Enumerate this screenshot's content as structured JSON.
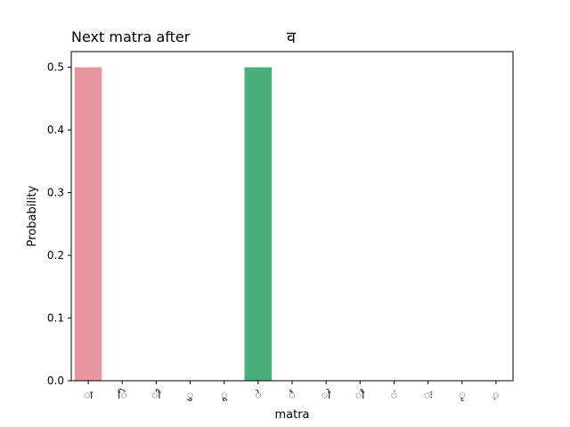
{
  "chart_data": {
    "type": "bar",
    "title": "Next matra after",
    "title_letter": "व",
    "xlabel": "matra",
    "ylabel": "Probability",
    "categories": [
      "ा",
      "ि",
      "ी",
      "ु",
      "ू",
      "े",
      "ै",
      "ो",
      "ौ",
      "ं",
      "ः",
      "ृ",
      "़"
    ],
    "values": [
      0.5,
      0,
      0,
      0,
      0,
      0.5,
      0,
      0,
      0,
      0,
      0,
      0,
      0
    ],
    "colors": [
      "#e8959f",
      "#e59a6b",
      "#c6a44a",
      "#a4ad47",
      "#6fb44a",
      "#49ae79",
      "#4ab09a",
      "#4aa9b0",
      "#4aa2c3",
      "#7e9fe0",
      "#b78fe6",
      "#e27fd8",
      "#ea86b7"
    ],
    "ylim": [
      0,
      0.525
    ],
    "yticks": [
      0.0,
      0.1,
      0.2,
      0.3,
      0.4,
      0.5
    ],
    "ytick_labels": [
      "0.0",
      "0.1",
      "0.2",
      "0.3",
      "0.4",
      "0.5"
    ],
    "grid": false,
    "legend": "none"
  }
}
